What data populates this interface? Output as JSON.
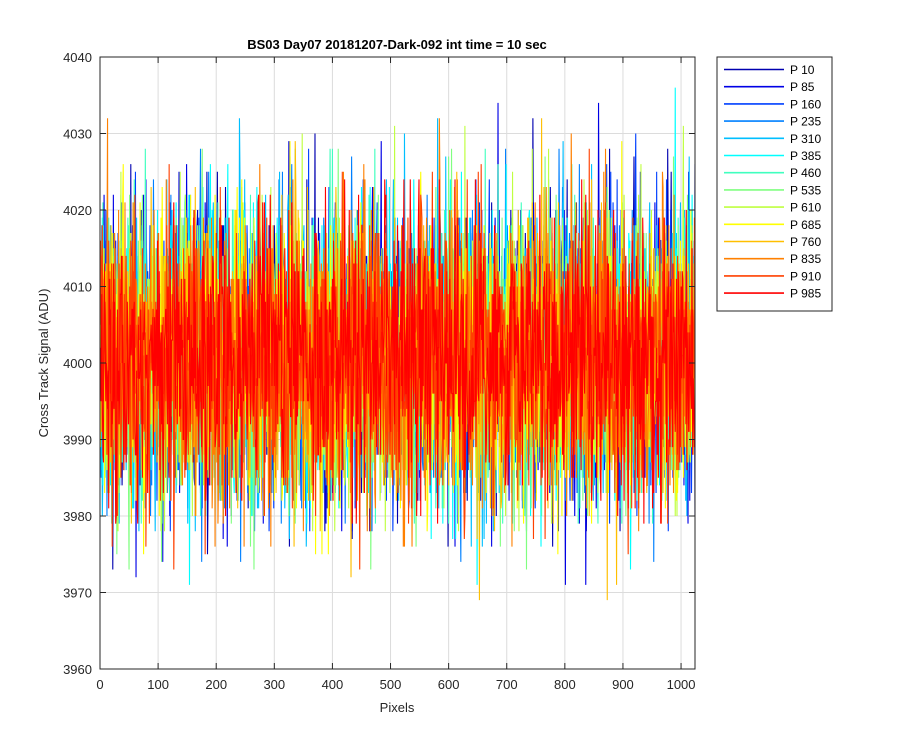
{
  "chart_data": {
    "type": "line",
    "title": "BS03 Day07 20181207-Dark-092 int time = 10 sec",
    "xlabel": "Pixels",
    "ylabel": "Cross Track Signal (ADU)",
    "xlim": [
      0,
      1024
    ],
    "ylim": [
      3960,
      4040
    ],
    "xticks": [
      "0",
      "100",
      "200",
      "300",
      "400",
      "500",
      "600",
      "700",
      "800",
      "900",
      "1000"
    ],
    "yticks": [
      "3960",
      "3970",
      "3980",
      "3990",
      "4000",
      "4010",
      "4020",
      "4030",
      "4040"
    ],
    "grid": true,
    "legend_position": "outside-right",
    "x_range": [
      1,
      1024
    ],
    "typical_signal_band": [
      3980,
      4022
    ],
    "series": [
      {
        "name": "P 10",
        "color": "#0000b0",
        "mean": 4001,
        "min": 3973,
        "max": 4032
      },
      {
        "name": "P 85",
        "color": "#0000e6",
        "mean": 4001,
        "min": 3971,
        "max": 4034
      },
      {
        "name": "P 160",
        "color": "#0040ff",
        "mean": 4001,
        "min": 3978,
        "max": 4030
      },
      {
        "name": "P 235",
        "color": "#0080ff",
        "mean": 4001,
        "min": 3974,
        "max": 4028
      },
      {
        "name": "P 310",
        "color": "#00bfff",
        "mean": 4001,
        "min": 3976,
        "max": 4032
      },
      {
        "name": "P 385",
        "color": "#00ffff",
        "mean": 4001,
        "min": 3971,
        "max": 4036
      },
      {
        "name": "P 460",
        "color": "#40ffbf",
        "mean": 4001,
        "min": 3979,
        "max": 4028
      },
      {
        "name": "P 535",
        "color": "#80ff80",
        "mean": 4001,
        "min": 3973,
        "max": 4028
      },
      {
        "name": "P 610",
        "color": "#bfff40",
        "mean": 4001,
        "min": 3978,
        "max": 4031
      },
      {
        "name": "P 685",
        "color": "#ffff00",
        "mean": 4001,
        "min": 3975,
        "max": 4029
      },
      {
        "name": "P 760",
        "color": "#ffbf00",
        "mean": 4001,
        "min": 3969,
        "max": 4032
      },
      {
        "name": "P 835",
        "color": "#ff8000",
        "mean": 4001,
        "min": 3976,
        "max": 4032
      },
      {
        "name": "P 910",
        "color": "#ff4000",
        "mean": 4001,
        "min": 3973,
        "max": 4028
      },
      {
        "name": "P 985",
        "color": "#ff0000",
        "mean": 4001,
        "min": 3979,
        "max": 4024
      }
    ]
  }
}
